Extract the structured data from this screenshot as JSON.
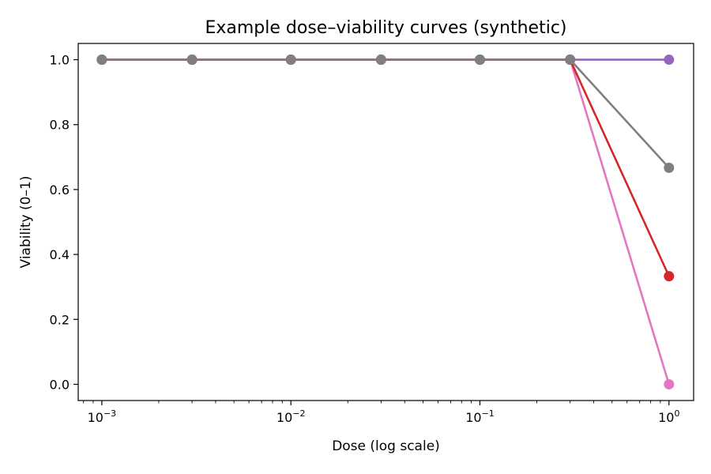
{
  "chart_data": {
    "type": "line",
    "title": "Example dose–viability curves (synthetic)",
    "xlabel": "Dose (log scale)",
    "ylabel": "Viability (0–1)",
    "xscale": "log",
    "xlim": [
      0.00075,
      1.35
    ],
    "ylim": [
      -0.05,
      1.05
    ],
    "x": [
      0.001,
      0.003,
      0.01,
      0.03,
      0.1,
      0.3,
      1
    ],
    "x_ticks": [
      {
        "value": 0.001,
        "base": "10",
        "exp": "−3"
      },
      {
        "value": 0.01,
        "base": "10",
        "exp": "−2"
      },
      {
        "value": 0.1,
        "base": "10",
        "exp": "−1"
      },
      {
        "value": 1,
        "base": "10",
        "exp": "0"
      }
    ],
    "y_ticks": [
      {
        "value": 0.0,
        "label": "0.0"
      },
      {
        "value": 0.2,
        "label": "0.2"
      },
      {
        "value": 0.4,
        "label": "0.4"
      },
      {
        "value": 0.6,
        "label": "0.6"
      },
      {
        "value": 0.8,
        "label": "0.8"
      },
      {
        "value": 1.0,
        "label": "1.0"
      }
    ],
    "grid": false,
    "legend": "none",
    "series": [
      {
        "name": "purple",
        "color": "#9467bd",
        "values": [
          1,
          1,
          1,
          1,
          1,
          1,
          1
        ]
      },
      {
        "name": "pink",
        "color": "#e377c2",
        "values": [
          1,
          1,
          1,
          1,
          1,
          1,
          0
        ]
      },
      {
        "name": "red",
        "color": "#d62728",
        "values": [
          1,
          1,
          1,
          1,
          1,
          1,
          0.333
        ]
      },
      {
        "name": "gray",
        "color": "#7f7f7f",
        "values": [
          1,
          1,
          1,
          1,
          1,
          1,
          0.667
        ]
      }
    ]
  }
}
